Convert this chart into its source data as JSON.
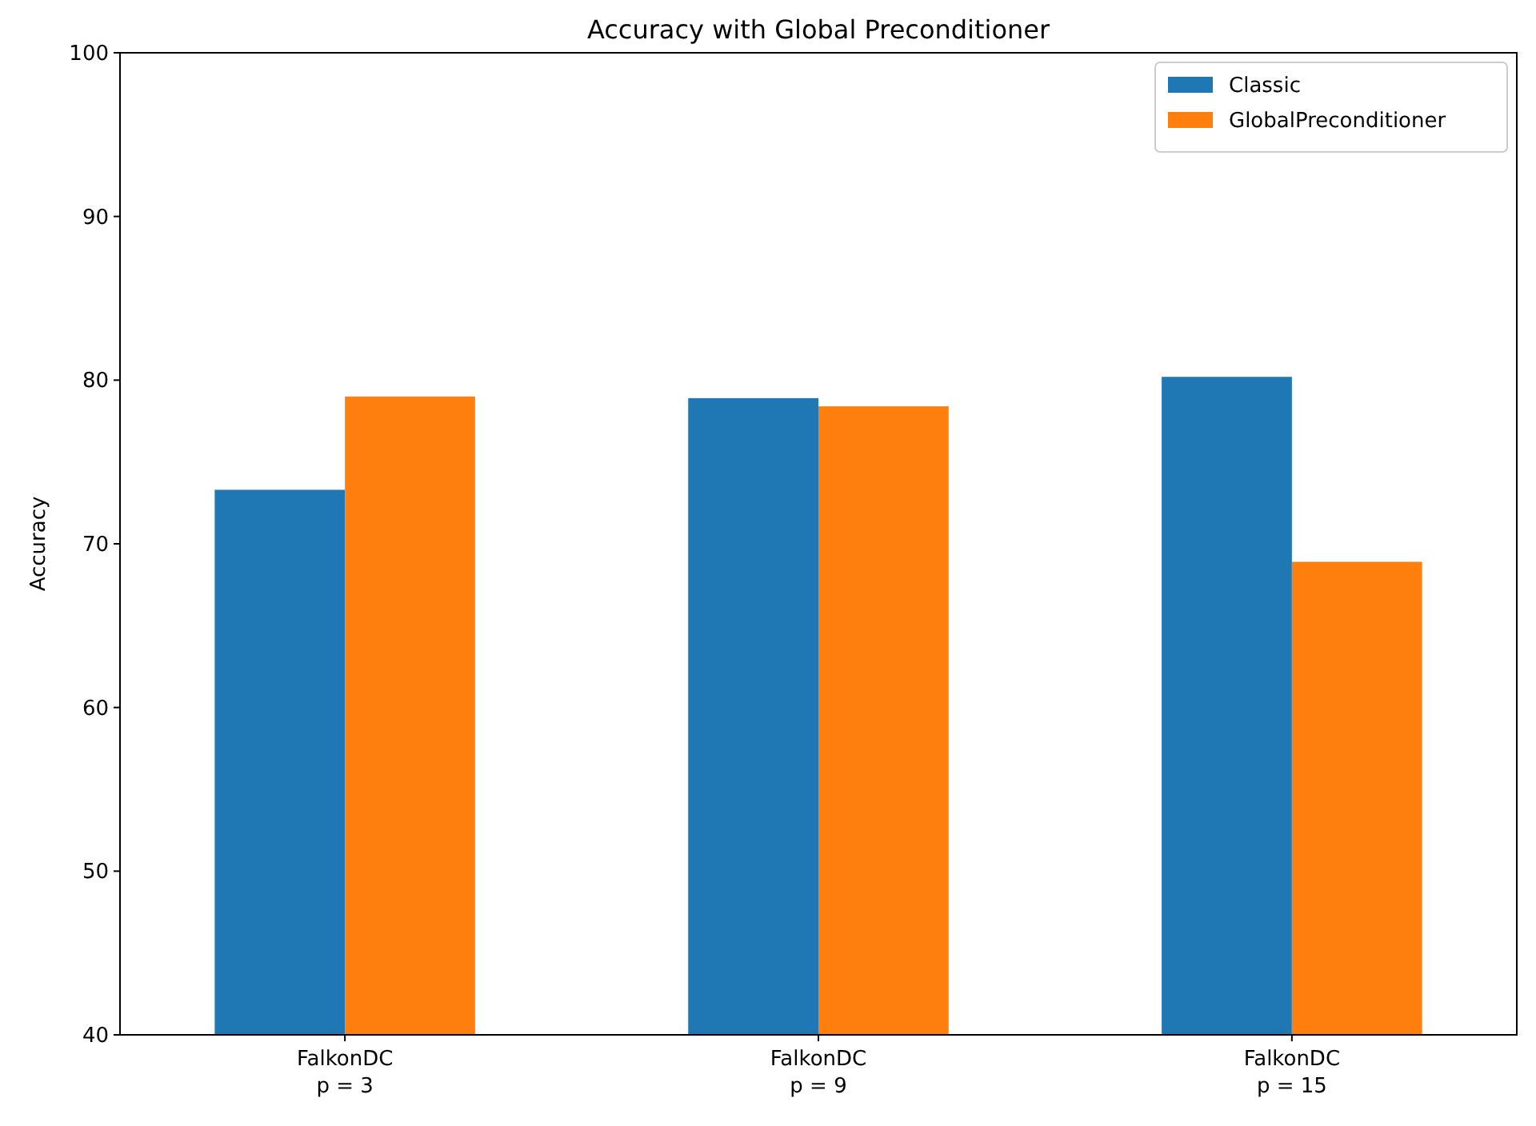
{
  "chart_data": {
    "type": "bar",
    "title": "Accuracy with Global Preconditioner",
    "ylabel": "Accuracy",
    "categories": [
      "FalkonDC\np = 3",
      "FalkonDC\np = 9",
      "FalkonDC\np = 15"
    ],
    "series": [
      {
        "name": "Classic",
        "color": "#1f77b4",
        "values": [
          73.3,
          78.9,
          80.2
        ]
      },
      {
        "name": "GlobalPreconditioner",
        "color": "#ff7f0e",
        "values": [
          79.0,
          78.4,
          68.9
        ]
      }
    ],
    "ylim": [
      40,
      100
    ],
    "yticks": [
      40,
      50,
      60,
      70,
      80,
      90,
      100
    ],
    "legend": "top right"
  }
}
